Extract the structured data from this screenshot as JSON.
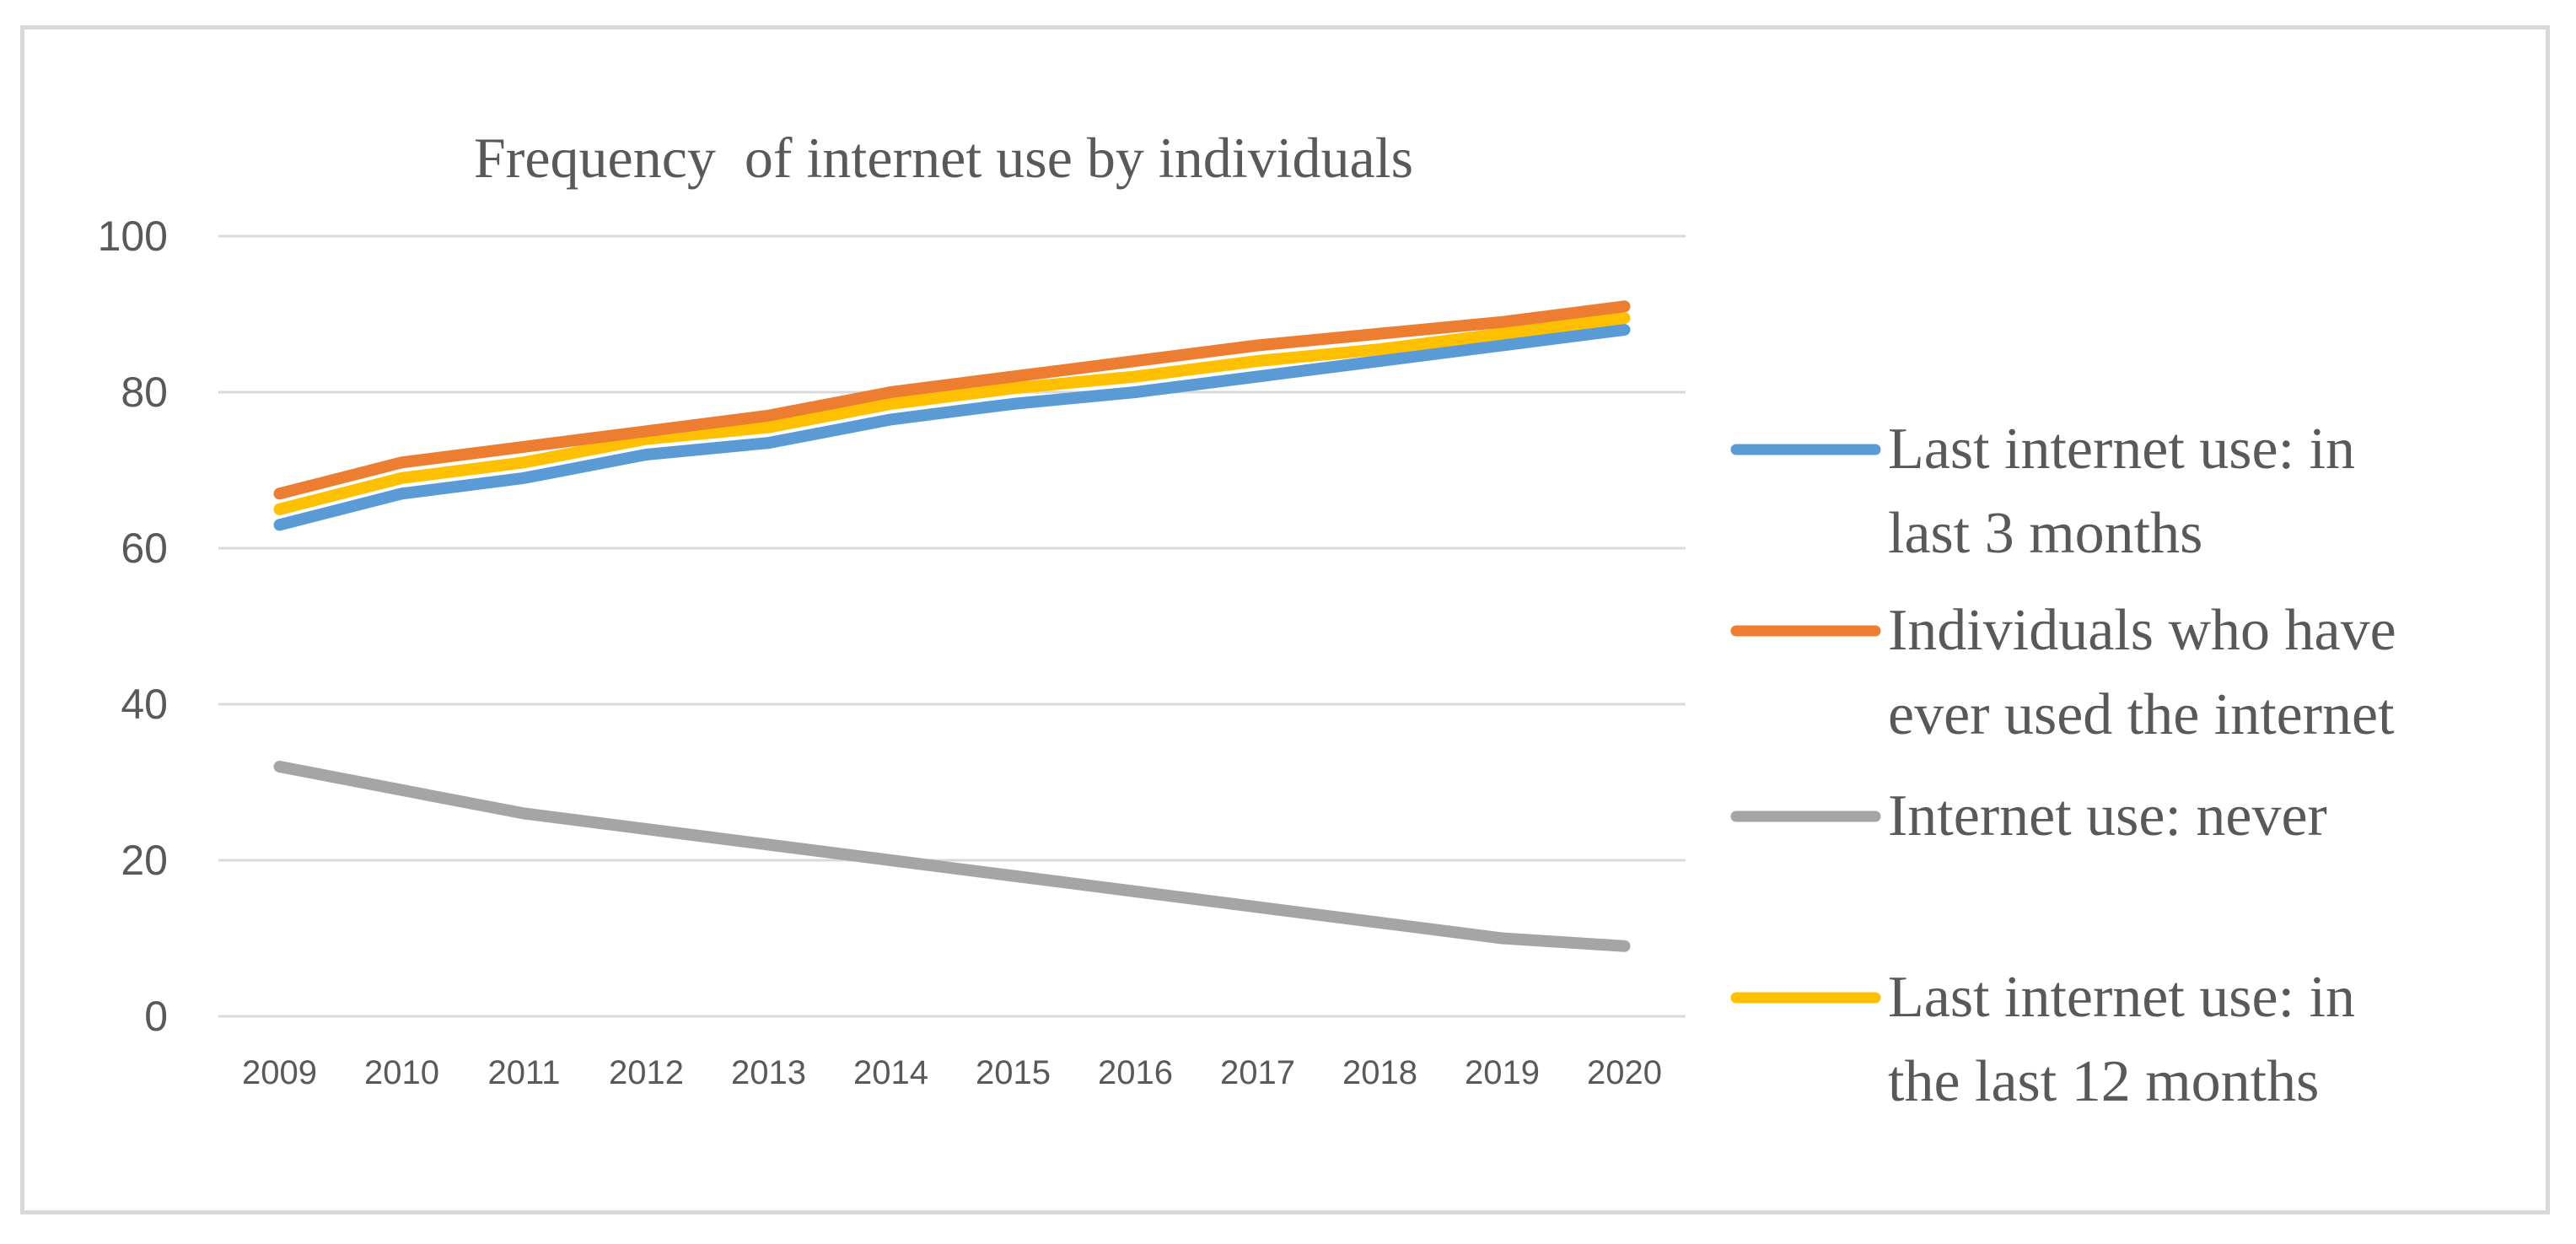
{
  "chart_data": {
    "type": "line",
    "title": "Frequency  of internet use by individuals",
    "xlabel": "",
    "ylabel": "",
    "ylim": [
      0,
      100
    ],
    "yticks": [
      0,
      20,
      40,
      60,
      80,
      100
    ],
    "grid": true,
    "legend_position": "right",
    "categories": [
      "2009",
      "2010",
      "2011",
      "2012",
      "2013",
      "2014",
      "2015",
      "2016",
      "2017",
      "2018",
      "2019",
      "2020"
    ],
    "series": [
      {
        "name": "Last internet use: in last 3 months",
        "legend_lines": [
          "Last internet use: in",
          "last 3 months"
        ],
        "color": "#5b9bd5",
        "values": [
          63,
          67,
          69,
          72,
          73.5,
          76.5,
          78.5,
          80,
          82,
          84,
          86,
          88
        ]
      },
      {
        "name": "Individuals who have ever used the internet",
        "legend_lines": [
          "Individuals who have",
          "ever used the internet"
        ],
        "color": "#ed7d31",
        "values": [
          67,
          71,
          73,
          75,
          77,
          80,
          82,
          84,
          86,
          87.5,
          89,
          91
        ]
      },
      {
        "name": "Internet use: never",
        "legend_lines": [
          "Internet use: never"
        ],
        "color": "#a5a5a5",
        "values": [
          32,
          29,
          26,
          24,
          22,
          20,
          18,
          16,
          14,
          12,
          10,
          9
        ]
      },
      {
        "name": "Last internet use: in the last 12 months",
        "legend_lines": [
          "Last internet use: in",
          "the last 12 months"
        ],
        "color": "#ffc000",
        "values": [
          65,
          69,
          71,
          74,
          75.5,
          78.5,
          80.5,
          82,
          84,
          85.5,
          87.5,
          89.5
        ]
      }
    ]
  }
}
